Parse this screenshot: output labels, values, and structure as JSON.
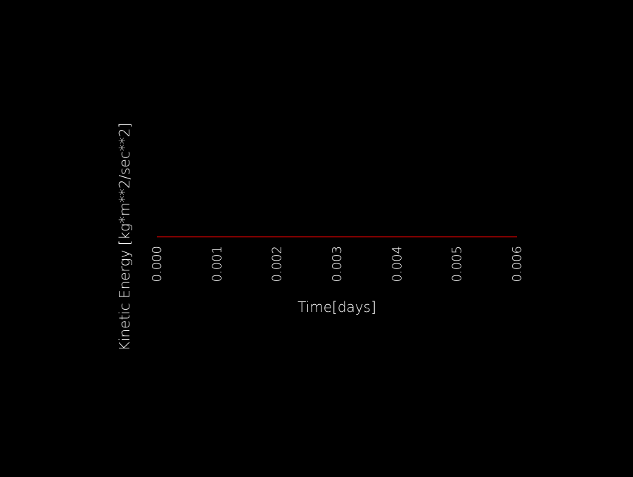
{
  "chart_data": {
    "type": "line",
    "title": "",
    "xlabel": "Time[days]",
    "ylabel": "Kinetic Energy [kg*m**2/sec**2]",
    "x_ticks": [
      "0.000",
      "0.001",
      "0.002",
      "0.003",
      "0.004",
      "0.005",
      "0.006"
    ],
    "xlim": [
      0.0,
      0.006
    ],
    "grid": false,
    "series": [
      {
        "x": [
          0.0,
          0.006
        ],
        "y": [
          0.0,
          0.0
        ],
        "color": "#cc0000"
      }
    ]
  },
  "colors": {
    "background": "#000000",
    "text": "#ffffff",
    "line": "#cc0000"
  }
}
